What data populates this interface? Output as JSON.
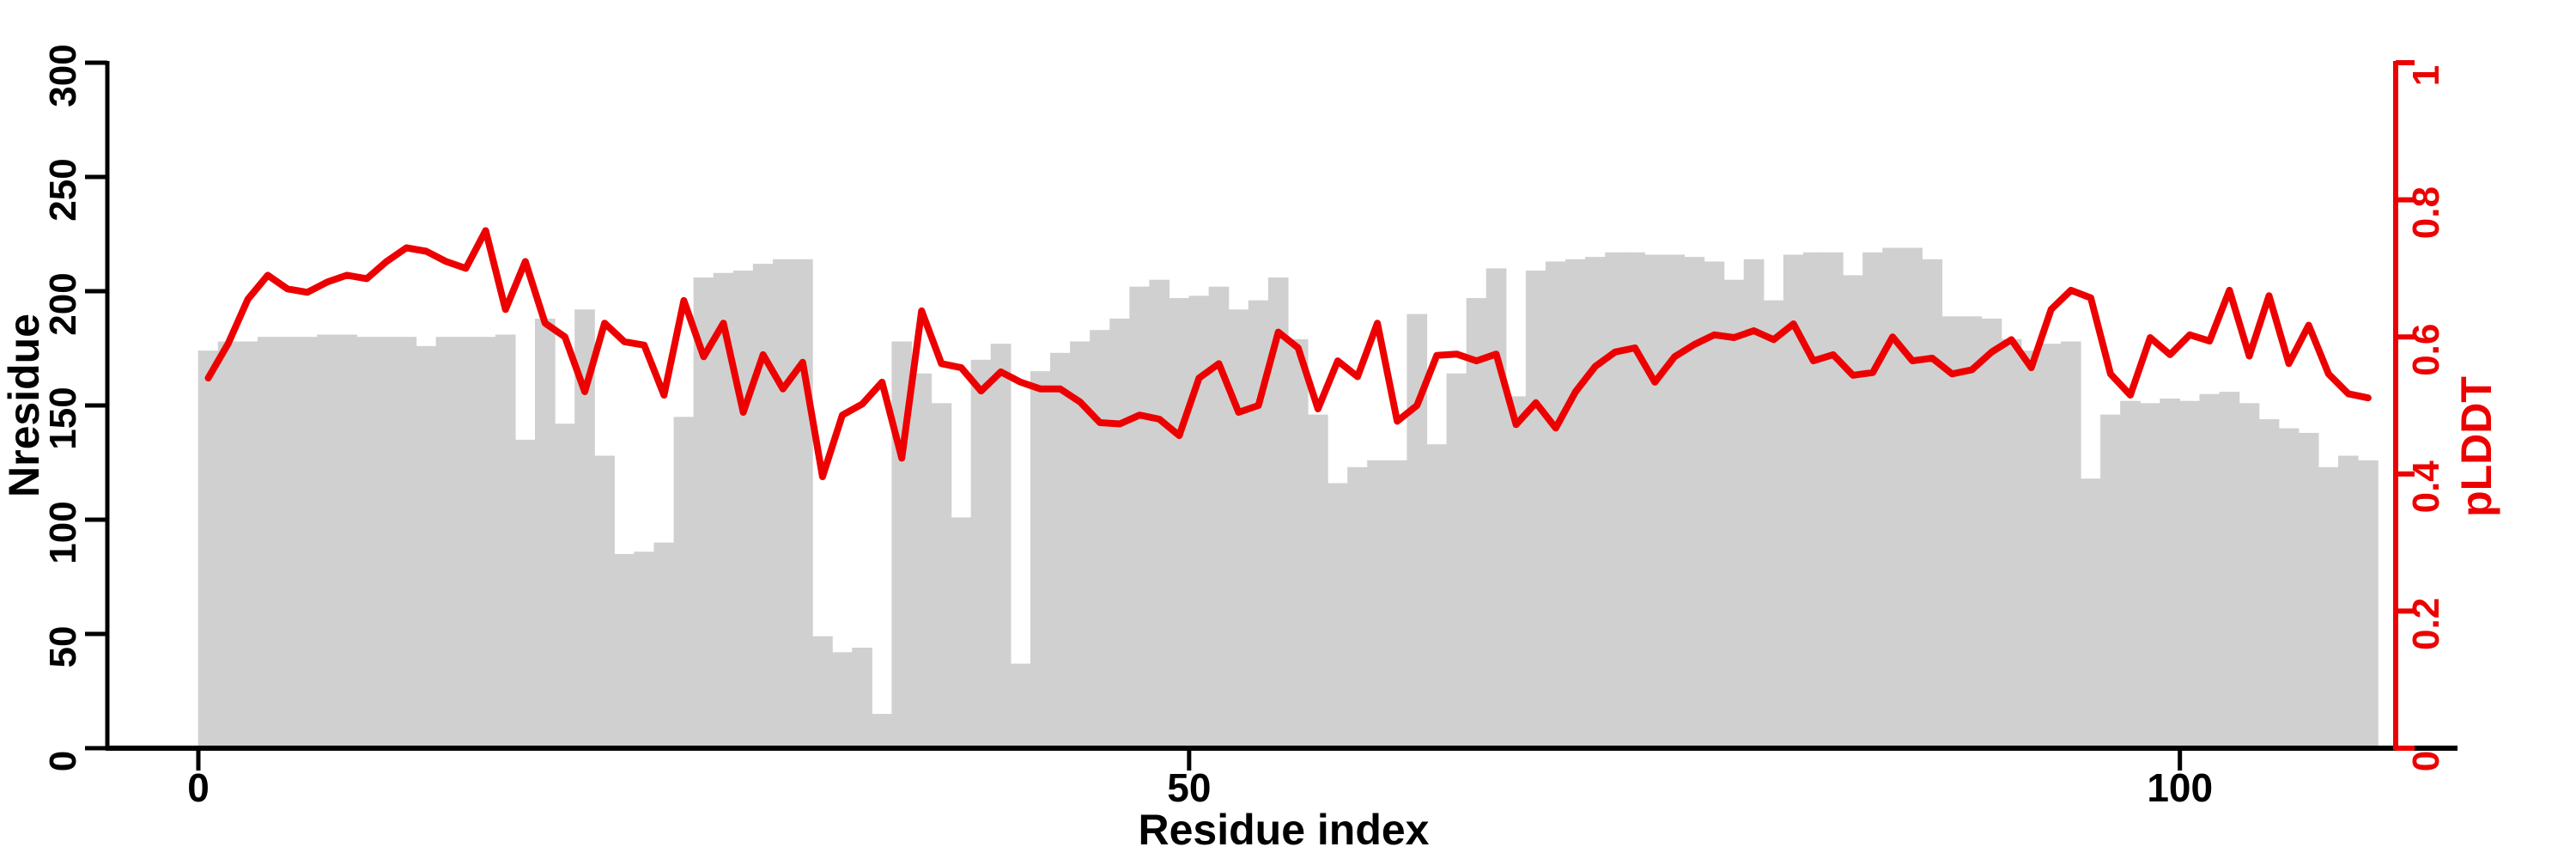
{
  "chart_data": {
    "type": "bar+line",
    "title": "",
    "x_label": "Residue index",
    "y_left_label": "Nresidue",
    "y_right_label": "pLDDT",
    "x_ticks": [
      0,
      50,
      100
    ],
    "x_range": [
      0,
      110
    ],
    "y_left_ticks": [
      0,
      50,
      100,
      150,
      200,
      250,
      300
    ],
    "y_left_range": [
      0,
      300
    ],
    "y_right_ticks": [
      0,
      0.2,
      0.4,
      0.6,
      0.8,
      1
    ],
    "y_right_range": [
      0,
      1
    ],
    "grid": "off",
    "legend": "none",
    "bar_color": "#d0d0d0",
    "line_color": "#ed0000",
    "axis_color": "#000000",
    "residue_indices_start": 0,
    "categories_note": "index i = residue index, bars span i..i+1",
    "series": [
      {
        "name": "Nresidue",
        "axis": "left",
        "values": [
          174,
          178,
          178,
          180,
          180,
          180,
          181,
          181,
          180,
          180,
          180,
          176,
          180,
          180,
          180,
          181,
          135,
          188,
          142,
          192,
          128,
          85,
          86,
          90,
          145,
          206,
          208,
          209,
          212,
          214,
          214,
          49,
          42,
          44,
          15,
          178,
          164,
          151,
          101,
          170,
          177,
          37,
          165,
          173,
          178,
          183,
          188,
          202,
          205,
          197,
          198,
          202,
          192,
          196,
          206,
          179,
          146,
          116,
          123,
          126,
          126,
          190,
          133,
          164,
          197,
          210,
          154,
          209,
          213,
          214,
          215,
          217,
          217,
          216,
          216,
          215,
          213,
          205,
          214,
          196,
          216,
          217,
          217,
          207,
          217,
          219,
          219,
          214,
          189,
          189,
          188,
          179,
          174,
          177,
          178,
          118,
          146,
          152,
          151,
          153,
          152,
          155,
          156,
          151,
          144,
          140,
          138,
          123,
          128,
          126
        ]
      },
      {
        "name": "pLDDT",
        "axis": "right",
        "values": [
          0.54,
          0.59,
          0.655,
          0.69,
          0.67,
          0.665,
          0.68,
          0.69,
          0.685,
          0.71,
          0.73,
          0.725,
          0.71,
          0.7,
          0.755,
          0.64,
          0.71,
          0.62,
          0.6,
          0.52,
          0.62,
          0.593,
          0.588,
          0.515,
          0.653,
          0.571,
          0.62,
          0.49,
          0.574,
          0.524,
          0.563,
          0.396,
          0.486,
          0.502,
          0.534,
          0.423,
          0.638,
          0.561,
          0.555,
          0.521,
          0.549,
          0.534,
          0.524,
          0.524,
          0.505,
          0.475,
          0.473,
          0.486,
          0.48,
          0.456,
          0.54,
          0.561,
          0.49,
          0.5,
          0.607,
          0.584,
          0.495,
          0.565,
          0.542,
          0.62,
          0.477,
          0.5,
          0.573,
          0.575,
          0.565,
          0.575,
          0.472,
          0.504,
          0.467,
          0.52,
          0.557,
          0.578,
          0.584,
          0.534,
          0.571,
          0.589,
          0.603,
          0.599,
          0.609,
          0.596,
          0.619,
          0.565,
          0.574,
          0.544,
          0.548,
          0.6,
          0.565,
          0.569,
          0.546,
          0.552,
          0.578,
          0.596,
          0.555,
          0.64,
          0.668,
          0.657,
          0.546,
          0.515,
          0.599,
          0.574,
          0.603,
          0.594,
          0.668,
          0.572,
          0.66,
          0.561,
          0.617,
          0.546,
          0.517,
          0.511
        ]
      }
    ]
  }
}
